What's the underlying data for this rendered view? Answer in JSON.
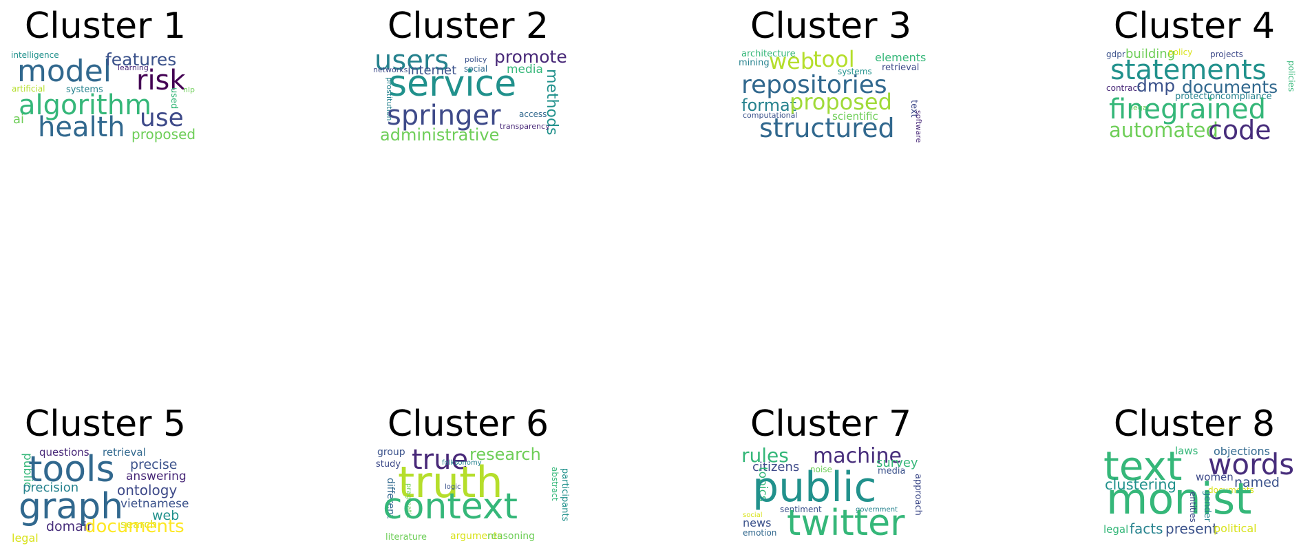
{
  "clusters": [
    {
      "title": "Cluster 1",
      "words": [
        {
          "text": "intelligence",
          "color": "#21918c"
        },
        {
          "text": "model",
          "color": "#31688e"
        },
        {
          "text": "features",
          "color": "#3b528b"
        },
        {
          "text": "learning",
          "color": "#482878"
        },
        {
          "text": "risk",
          "color": "#440154"
        },
        {
          "text": "artificial",
          "color": "#b5de2b"
        },
        {
          "text": "systems",
          "color": "#26828e"
        },
        {
          "text": "nlp",
          "color": "#6ece58"
        },
        {
          "text": "used",
          "color": "#35b779"
        },
        {
          "text": "algorithm",
          "color": "#35b779"
        },
        {
          "text": "use",
          "color": "#3e4a89"
        },
        {
          "text": "ai",
          "color": "#6ece58"
        },
        {
          "text": "health",
          "color": "#31688e"
        },
        {
          "text": "proposed",
          "color": "#6ece58"
        }
      ]
    },
    {
      "title": "Cluster 2",
      "words": [
        {
          "text": "users",
          "color": "#26828e"
        },
        {
          "text": "policy",
          "color": "#3b528b"
        },
        {
          "text": "promote",
          "color": "#482878"
        },
        {
          "text": "networks",
          "color": "#3e4a89"
        },
        {
          "text": "internet",
          "color": "#3b528b"
        },
        {
          "text": "social",
          "color": "#31688e"
        },
        {
          "text": "media",
          "color": "#35b779"
        },
        {
          "text": "service",
          "color": "#21918c"
        },
        {
          "text": "prostitution",
          "color": "#26828e"
        },
        {
          "text": "methods",
          "color": "#21918c"
        },
        {
          "text": "springer",
          "color": "#3e4a89"
        },
        {
          "text": "access",
          "color": "#31688e"
        },
        {
          "text": "transparency",
          "color": "#482878"
        },
        {
          "text": "administrative",
          "color": "#6ece58"
        }
      ]
    },
    {
      "title": "Cluster 3",
      "words": [
        {
          "text": "architecture",
          "color": "#35b779"
        },
        {
          "text": "mining",
          "color": "#26828e"
        },
        {
          "text": "web",
          "color": "#b5de2b"
        },
        {
          "text": "tool",
          "color": "#b5de2b"
        },
        {
          "text": "elements",
          "color": "#35b779"
        },
        {
          "text": "systems",
          "color": "#21918c"
        },
        {
          "text": "retrieval",
          "color": "#3e4a89"
        },
        {
          "text": "repositories",
          "color": "#31688e"
        },
        {
          "text": "format",
          "color": "#26828e"
        },
        {
          "text": "proposed",
          "color": "#a0da39"
        },
        {
          "text": "computational",
          "color": "#3b528b"
        },
        {
          "text": "scientific",
          "color": "#6ece58"
        },
        {
          "text": "text",
          "color": "#3e4a89"
        },
        {
          "text": "software",
          "color": "#482878"
        },
        {
          "text": "structured",
          "color": "#31688e"
        }
      ]
    },
    {
      "title": "Cluster 4",
      "words": [
        {
          "text": "gdpr",
          "color": "#3b528b"
        },
        {
          "text": "building",
          "color": "#6ece58"
        },
        {
          "text": "policy",
          "color": "#d8e219"
        },
        {
          "text": "projects",
          "color": "#3e4a89"
        },
        {
          "text": "statements",
          "color": "#21918c"
        },
        {
          "text": "policies",
          "color": "#35b779"
        },
        {
          "text": "contract",
          "color": "#482878"
        },
        {
          "text": "dmp",
          "color": "#3b528b"
        },
        {
          "text": "documents",
          "color": "#31688e"
        },
        {
          "text": "protection",
          "color": "#26828e"
        },
        {
          "text": "compliance",
          "color": "#26828e"
        },
        {
          "text": "legal",
          "color": "#6ece58"
        },
        {
          "text": "finegrained",
          "color": "#35b779"
        },
        {
          "text": "automated",
          "color": "#6ece58"
        },
        {
          "text": "code",
          "color": "#472d7b"
        }
      ]
    },
    {
      "title": "Cluster 5",
      "words": [
        {
          "text": "questions",
          "color": "#482878"
        },
        {
          "text": "retrieval",
          "color": "#31688e"
        },
        {
          "text": "public",
          "color": "#35b779"
        },
        {
          "text": "tools",
          "color": "#31688e"
        },
        {
          "text": "precise",
          "color": "#3b528b"
        },
        {
          "text": "answering",
          "color": "#482878"
        },
        {
          "text": "precision",
          "color": "#26828e"
        },
        {
          "text": "ontology",
          "color": "#3e4a89"
        },
        {
          "text": "graph",
          "color": "#31688e"
        },
        {
          "text": "vietnamese",
          "color": "#3b528b"
        },
        {
          "text": "web",
          "color": "#21918c"
        },
        {
          "text": "search",
          "color": "#d8e219"
        },
        {
          "text": "legal",
          "color": "#d8e219"
        },
        {
          "text": "domain",
          "color": "#472d7b"
        },
        {
          "text": "documents",
          "color": "#fde725"
        }
      ]
    },
    {
      "title": "Cluster 6",
      "words": [
        {
          "text": "group",
          "color": "#3b528b"
        },
        {
          "text": "true",
          "color": "#482878"
        },
        {
          "text": "research",
          "color": "#6ece58"
        },
        {
          "text": "study",
          "color": "#3e4a89"
        },
        {
          "text": "folksonomy",
          "color": "#26828e"
        },
        {
          "text": "truth",
          "color": "#b5de2b"
        },
        {
          "text": "abstract",
          "color": "#35b779"
        },
        {
          "text": "participants",
          "color": "#21918c"
        },
        {
          "text": "different",
          "color": "#31688e"
        },
        {
          "text": "pragmatic",
          "color": "#6ece58"
        },
        {
          "text": "logic",
          "color": "#3b528b"
        },
        {
          "text": "context",
          "color": "#35b779"
        },
        {
          "text": "literature",
          "color": "#6ece58"
        },
        {
          "text": "arguments",
          "color": "#d8e219"
        },
        {
          "text": "reasoning",
          "color": "#6ece58"
        }
      ]
    },
    {
      "title": "Cluster 7",
      "words": [
        {
          "text": "rules",
          "color": "#35b779"
        },
        {
          "text": "machine",
          "color": "#472d7b"
        },
        {
          "text": "survey",
          "color": "#35b779"
        },
        {
          "text": "citizens",
          "color": "#3e4a89"
        },
        {
          "text": "noise",
          "color": "#6ece58"
        },
        {
          "text": "media",
          "color": "#3b528b"
        },
        {
          "text": "topics",
          "color": "#35b779"
        },
        {
          "text": "public",
          "color": "#21918c"
        },
        {
          "text": "approach",
          "color": "#3e4a89"
        },
        {
          "text": "sentiment",
          "color": "#3b528b"
        },
        {
          "text": "government",
          "color": "#26828e"
        },
        {
          "text": "social",
          "color": "#d8e219"
        },
        {
          "text": "news",
          "color": "#3b528b"
        },
        {
          "text": "emotion",
          "color": "#31688e"
        },
        {
          "text": "twitter",
          "color": "#35b779"
        }
      ]
    },
    {
      "title": "Cluster 8",
      "words": [
        {
          "text": "laws",
          "color": "#35b779"
        },
        {
          "text": "objections",
          "color": "#31688e"
        },
        {
          "text": "text",
          "color": "#35b779"
        },
        {
          "text": "words",
          "color": "#472d7b"
        },
        {
          "text": "clustering",
          "color": "#21918c"
        },
        {
          "text": "women",
          "color": "#3e4a89"
        },
        {
          "text": "named",
          "color": "#3b528b"
        },
        {
          "text": "documents",
          "color": "#d8e219"
        },
        {
          "text": "monist",
          "color": "#35b779"
        },
        {
          "text": "entities",
          "color": "#3e4a89"
        },
        {
          "text": "gender",
          "color": "#26828e"
        },
        {
          "text": "legal",
          "color": "#35b779"
        },
        {
          "text": "facts",
          "color": "#26828e"
        },
        {
          "text": "present",
          "color": "#3b528b"
        },
        {
          "text": "political",
          "color": "#d8e219"
        }
      ]
    }
  ]
}
